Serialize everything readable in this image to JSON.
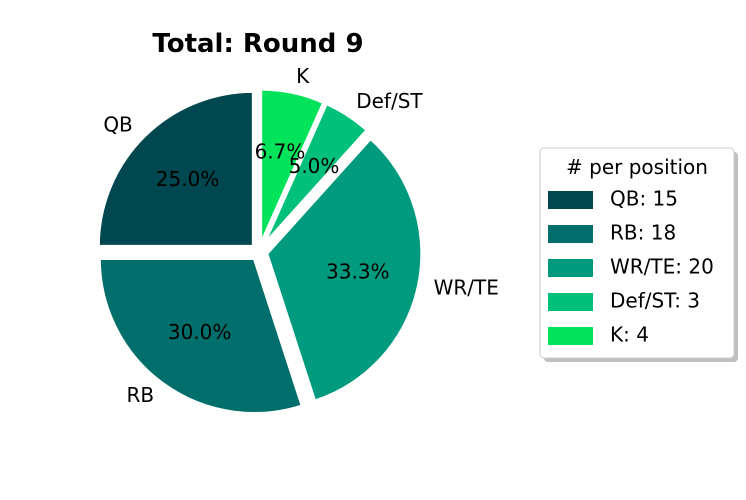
{
  "chart_data": {
    "type": "pie",
    "title": "Total: Round 9",
    "categories": [
      "QB",
      "RB",
      "WR/TE",
      "Def/ST",
      "K"
    ],
    "values": [
      15,
      18,
      20,
      3,
      4
    ],
    "percent_labels": [
      "25.0%",
      "30.0%",
      "33.3%",
      "5.0%",
      "6.7%"
    ],
    "colors": [
      "#00474f",
      "#006e6b",
      "#009a7e",
      "#00c07a",
      "#00e35a"
    ],
    "exploded": true,
    "start_angle_deg": 90,
    "direction": "counterclockwise",
    "legend": {
      "title": "# per position",
      "entries": [
        "QB: 15",
        "RB: 18",
        "WR/TE: 20",
        "Def/ST: 3",
        "K: 4"
      ],
      "placement": "right"
    }
  }
}
